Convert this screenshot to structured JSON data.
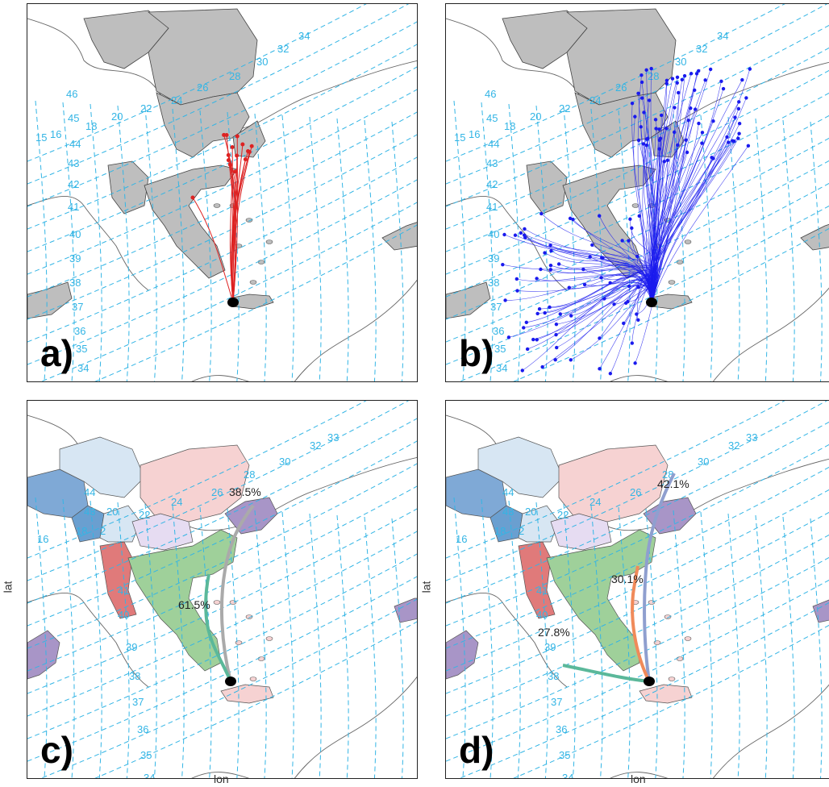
{
  "panels": {
    "a": {
      "label": "a)"
    },
    "b": {
      "label": "b)"
    },
    "c": {
      "label": "c)",
      "axis_x": "lon",
      "axis_y": "lat",
      "clusters": [
        {
          "pct": "38.5%",
          "color": "#aaaaaa"
        },
        {
          "pct": "61.5%",
          "color": "#5bb89a"
        }
      ]
    },
    "d": {
      "label": "d)",
      "axis_x": "lon",
      "axis_y": "lat",
      "clusters": [
        {
          "pct": "42.1%",
          "color": "#8f9fcf"
        },
        {
          "pct": "30.1%",
          "color": "#f08a5a"
        },
        {
          "pct": "27.8%",
          "color": "#5bb89a"
        }
      ]
    }
  },
  "grid_lon_labels_ab": [
    "46",
    "45",
    "15",
    "16",
    "44",
    "43",
    "42",
    "41",
    "40",
    "39",
    "38",
    "37",
    "36",
    "35",
    "34",
    "18",
    "20",
    "22",
    "24",
    "26",
    "28",
    "30",
    "32",
    "34"
  ],
  "grid_lon_labels_cd": [
    "44",
    "43",
    "18",
    "16",
    "2",
    "20",
    "22",
    "24",
    "26",
    "28",
    "30",
    "32",
    "33",
    "41",
    "40",
    "39",
    "38",
    "37",
    "36",
    "35",
    "34"
  ],
  "colors": {
    "grid": "#33b5e5",
    "country_grey": "#bebebe",
    "trajectory_a": "#dd2222",
    "trajectory_b": "#1a1aee",
    "border": "#666666"
  }
}
